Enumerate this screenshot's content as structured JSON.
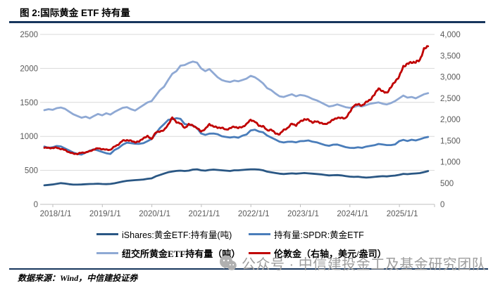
{
  "header": {
    "title": "图 2:国际黄金 ETF 持有量"
  },
  "footer": {
    "source": "数据来源：Wind，中信建投证券"
  },
  "watermark": {
    "icon": "wechat-icon",
    "text": "公众号 · 中信建投金工及基金研究团队"
  },
  "colors": {
    "rule": "#17365d",
    "grid": "#d9d9d9",
    "axis_line": "#bfbfbf",
    "axis_text": "#595959",
    "watermark_gray": "#9e9e9e",
    "ishares_dark_blue": "#2a5784",
    "spdr_medium_blue": "#4a7dba",
    "nyse_light_blue": "#8fa9d4",
    "london_red": "#c00000"
  },
  "chart_data": {
    "type": "line",
    "title": "图 2:国际黄金 ETF 持有量",
    "x_unit": "monthly from 2018/1 to 2025/10",
    "x_tick_labels": [
      "2018/1/1",
      "2019/1/1",
      "2020/1/1",
      "2021/1/1",
      "2022/1/1",
      "2023/1/1",
      "2024/1/1",
      "2025/1/1"
    ],
    "left_axis": {
      "min": 0,
      "max": 2500,
      "step": 500,
      "tick_values": [
        0,
        500,
        1000,
        1500,
        2000,
        2500
      ],
      "tick_labels": [
        "0",
        "500",
        "1000",
        "1500",
        "2000",
        "2500"
      ]
    },
    "right_axis": {
      "min": 0,
      "max": 4000,
      "step": 500,
      "tick_values": [
        0,
        500,
        1000,
        1500,
        2000,
        2500,
        3000,
        3500,
        4000
      ],
      "tick_labels": [
        "0",
        "500",
        "1,000",
        "1,500",
        "2,000",
        "2,500",
        "3,000",
        "3,500",
        "4,000"
      ]
    },
    "grid": "horizontal-only",
    "legend_position": "bottom",
    "series": [
      {
        "name": "iShares:黄金ETF:持有量(吨)",
        "axis": "left",
        "color": "#2a5784",
        "noise": false,
        "values": [
          280,
          286,
          292,
          302,
          312,
          306,
          296,
          290,
          290,
          292,
          296,
          300,
          301,
          304,
          300,
          298,
          301,
          310,
          322,
          336,
          346,
          351,
          356,
          361,
          366,
          376,
          382,
          412,
          432,
          452,
          472,
          482,
          492,
          496,
          491,
          496,
          511,
          516,
          501,
          496,
          506,
          511,
          506,
          501,
          496,
          491,
          501,
          501,
          506,
          511,
          516,
          516,
          511,
          501,
          481,
          471,
          461,
          451,
          446,
          451,
          456,
          451,
          456,
          461,
          456,
          451,
          446,
          441,
          433,
          426,
          429,
          431,
          426,
          416,
          408,
          404,
          407,
          399,
          394,
          398,
          404,
          410,
          414,
          411,
          418,
          424,
          434,
          448,
          444,
          450,
          455,
          460,
          474,
          490
        ]
      },
      {
        "name": "持有量:SPDR:黄金ETF",
        "axis": "left",
        "color": "#4a7dba",
        "noise": false,
        "values": [
          850,
          832,
          840,
          858,
          852,
          822,
          792,
          762,
          742,
          732,
          760,
          788,
          810,
          792,
          772,
          752,
          742,
          800,
          830,
          878,
          908,
          900,
          892,
          890,
          900,
          930,
          962,
          1042,
          1122,
          1180,
          1242,
          1252,
          1268,
          1258,
          1182,
          1170,
          1160,
          1122,
          1042,
          1022,
          1040,
          1042,
          1032,
          1002,
          992,
          982,
          992,
          980,
          1010,
          1028,
          1088,
          1098,
          1072,
          1060,
          1012,
          982,
          952,
          922,
          910,
          920,
          922,
          912,
          930,
          932,
          940,
          922,
          912,
          892,
          872,
          862,
          878,
          880,
          862,
          842,
          832,
          830,
          840,
          832,
          850,
          860,
          870,
          888,
          880,
          872,
          872,
          882,
          930,
          948,
          932,
          950,
          940,
          958,
          978,
          992
        ]
      },
      {
        "name": "纽交所黄金ETF持有量（吨）",
        "axis": "left",
        "color": "#8fa9d4",
        "noise": false,
        "values": [
          1385,
          1400,
          1390,
          1415,
          1425,
          1405,
          1365,
          1325,
          1300,
          1275,
          1290,
          1265,
          1300,
          1330,
          1310,
          1340,
          1320,
          1360,
          1390,
          1420,
          1430,
          1400,
          1380,
          1420,
          1460,
          1500,
          1520,
          1600,
          1680,
          1730,
          1830,
          1920,
          1960,
          2040,
          2050,
          2080,
          2100,
          2085,
          2000,
          1960,
          1990,
          1930,
          1870,
          1830,
          1810,
          1800,
          1820,
          1810,
          1830,
          1850,
          1890,
          1870,
          1830,
          1780,
          1710,
          1680,
          1630,
          1590,
          1580,
          1600,
          1620,
          1590,
          1610,
          1600,
          1580,
          1550,
          1530,
          1500,
          1470,
          1440,
          1450,
          1470,
          1450,
          1430,
          1420,
          1430,
          1450,
          1440,
          1460,
          1480,
          1490,
          1500,
          1480,
          1470,
          1490,
          1520,
          1560,
          1600,
          1570,
          1580,
          1560,
          1590,
          1620,
          1635
        ]
      },
      {
        "name": "伦敦金（右轴，美元/盎司）",
        "axis": "right",
        "color": "#c00000",
        "noise": true,
        "values": [
          1331,
          1330,
          1325,
          1336,
          1303,
          1281,
          1224,
          1196,
          1187,
          1215,
          1222,
          1250,
          1292,
          1320,
          1300,
          1286,
          1284,
          1359,
          1413,
          1500,
          1511,
          1495,
          1464,
          1479,
          1561,
          1600,
          1540,
          1690,
          1720,
          1741,
          1880,
          2040,
          1940,
          1900,
          1800,
          1880,
          1860,
          1790,
          1720,
          1770,
          1890,
          1830,
          1810,
          1800,
          1760,
          1790,
          1830,
          1800,
          1820,
          1890,
          1990,
          1950,
          1850,
          1840,
          1740,
          1760,
          1670,
          1650,
          1750,
          1800,
          1900,
          1860,
          1950,
          2000,
          1990,
          1930,
          1950,
          1920,
          1880,
          1930,
          1990,
          2040,
          2030,
          2030,
          2160,
          2330,
          2350,
          2330,
          2400,
          2470,
          2580,
          2740,
          2650,
          2630,
          2750,
          2900,
          3000,
          3250,
          3300,
          3350,
          3340,
          3400,
          3650,
          3720
        ]
      }
    ]
  }
}
